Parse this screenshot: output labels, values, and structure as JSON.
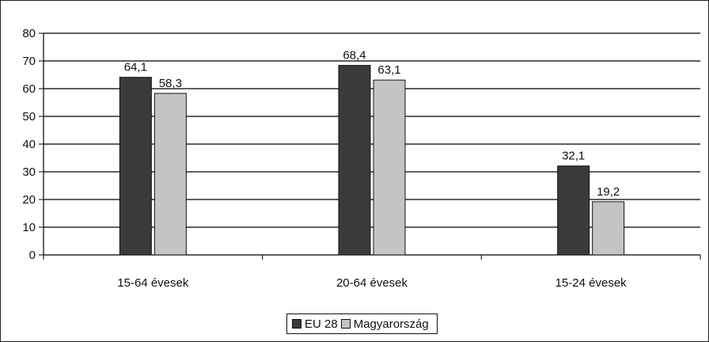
{
  "chart_data": {
    "type": "bar",
    "title": "",
    "xlabel": "",
    "ylabel": "",
    "categories": [
      "15-64 évesek",
      "20-64 évesek",
      "15-24 évesek"
    ],
    "series": [
      {
        "name": "EU 28",
        "values": [
          64.1,
          68.4,
          32.1
        ],
        "labels": [
          "64,1",
          "68,4",
          "32,1"
        ],
        "color": "#3a3a3a"
      },
      {
        "name": "Magyarország",
        "values": [
          58.3,
          63.1,
          19.2
        ],
        "labels": [
          "58,3",
          "63,1",
          "19,2"
        ],
        "color": "#c4c4c4"
      }
    ],
    "ylim": [
      0,
      80
    ],
    "yticks": [
      0,
      10,
      20,
      30,
      40,
      50,
      60,
      70,
      80
    ],
    "grid": true,
    "legend_position": "bottom"
  }
}
